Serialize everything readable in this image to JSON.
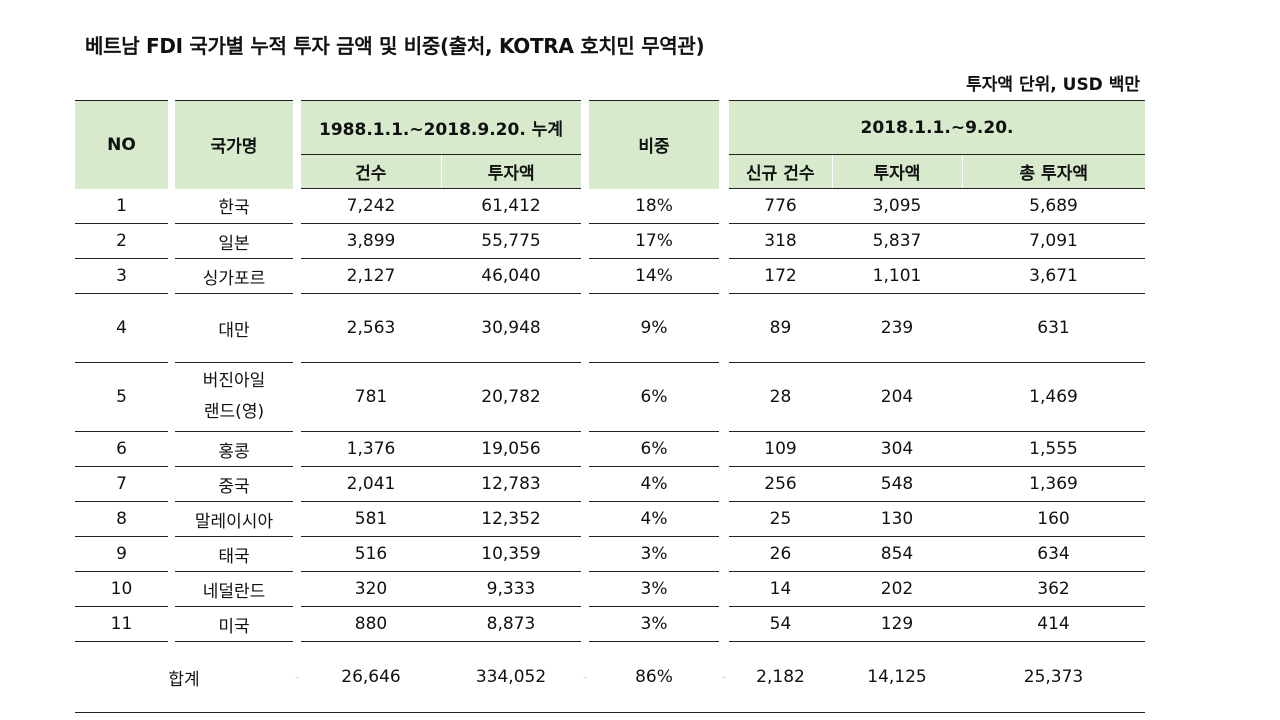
{
  "title": "베트남 FDI 국가별 누적 투자 금액 및 비중(출처, KOTRA 호치민 무역관)",
  "unit_note": "투자액 단위, USD 백만",
  "headers": {
    "no": "NO",
    "country": "국가명",
    "cumulative": "1988.1.1.~2018.9.20. 누계",
    "cases": "건수",
    "amount": "투자액",
    "share": "비중",
    "period": "2018.1.1.~9.20.",
    "new_cases": "신규 건수",
    "period_amount": "투자액",
    "total_amount": "총 투자액"
  },
  "rows": [
    {
      "no": "1",
      "country": "한국",
      "cases": "7,242",
      "amount": "61,412",
      "share": "18%",
      "new_cases": "776",
      "period_amount": "3,095",
      "total_amount": "5,689"
    },
    {
      "no": "2",
      "country": "일본",
      "cases": "3,899",
      "amount": "55,775",
      "share": "17%",
      "new_cases": "318",
      "period_amount": "5,837",
      "total_amount": "7,091"
    },
    {
      "no": "3",
      "country": "싱가포르",
      "cases": "2,127",
      "amount": "46,040",
      "share": "14%",
      "new_cases": "172",
      "period_amount": "1,101",
      "total_amount": "3,671"
    },
    {
      "no": "4",
      "country": "대만",
      "cases": "2,563",
      "amount": "30,948",
      "share": "9%",
      "new_cases": "89",
      "period_amount": "239",
      "total_amount": "631"
    },
    {
      "no": "5",
      "country_line1": "버진아일",
      "country_line2": "랜드(영)",
      "cases": "781",
      "amount": "20,782",
      "share": "6%",
      "new_cases": "28",
      "period_amount": "204",
      "total_amount": "1,469"
    },
    {
      "no": "6",
      "country": "홍콩",
      "cases": "1,376",
      "amount": "19,056",
      "share": "6%",
      "new_cases": "109",
      "period_amount": "304",
      "total_amount": "1,555"
    },
    {
      "no": "7",
      "country": "중국",
      "cases": "2,041",
      "amount": "12,783",
      "share": "4%",
      "new_cases": "256",
      "period_amount": "548",
      "total_amount": "1,369"
    },
    {
      "no": "8",
      "country": "말레이시아",
      "cases": "581",
      "amount": "12,352",
      "share": "4%",
      "new_cases": "25",
      "period_amount": "130",
      "total_amount": "160"
    },
    {
      "no": "9",
      "country": "태국",
      "cases": "516",
      "amount": "10,359",
      "share": "3%",
      "new_cases": "26",
      "period_amount": "854",
      "total_amount": "634"
    },
    {
      "no": "10",
      "country": "네덜란드",
      "cases": "320",
      "amount": "9,333",
      "share": "3%",
      "new_cases": "14",
      "period_amount": "202",
      "total_amount": "362"
    },
    {
      "no": "11",
      "country": "미국",
      "cases": "880",
      "amount": "8,873",
      "share": "3%",
      "new_cases": "54",
      "period_amount": "129",
      "total_amount": "414"
    }
  ],
  "total": {
    "label": "합계",
    "cases": "26,646",
    "amount": "334,052",
    "share": "86%",
    "new_cases": "2,182",
    "period_amount": "14,125",
    "total_amount": "25,373",
    "separator": "-"
  }
}
